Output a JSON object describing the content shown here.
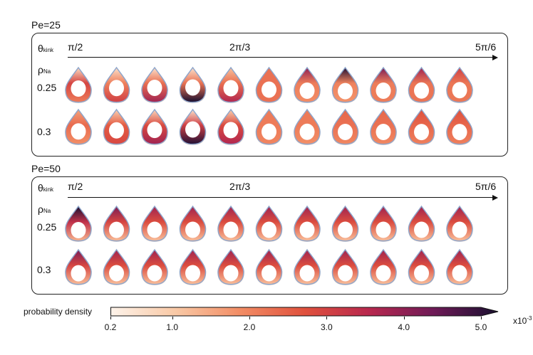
{
  "panels": [
    {
      "pe_label": "Pe=25",
      "theta_symbol": "θ",
      "theta_sub": "kink",
      "theta_labels": [
        "π/2",
        "2π/3",
        "5π/6"
      ],
      "rho_symbol": "ρ",
      "rho_sub": "Na",
      "rows": [
        "0.25",
        "0.3"
      ],
      "rows_density": [
        [
          {
            "side": 0.85,
            "bottom": 0.55,
            "top": 0.05,
            "peak": 0.55
          },
          {
            "side": 0.45,
            "bottom": 0.75,
            "top": 0.0,
            "peak": 0.65
          },
          {
            "side": 0.45,
            "bottom": 0.85,
            "top": 0.0,
            "peak": 0.75
          },
          {
            "side": 0.35,
            "bottom": 1.0,
            "top": 0.0,
            "peak": 0.95
          },
          {
            "side": 0.45,
            "bottom": 0.8,
            "top": 0.15,
            "peak": 0.75
          },
          {
            "side": 0.55,
            "bottom": 0.55,
            "top": 0.55,
            "peak": 0.6
          },
          {
            "side": 0.35,
            "bottom": 0.3,
            "top": 0.8,
            "peak": 0.85
          },
          {
            "side": 0.3,
            "bottom": 0.25,
            "top": 0.95,
            "peak": 0.95
          },
          {
            "side": 0.35,
            "bottom": 0.35,
            "top": 0.85,
            "peak": 0.85
          },
          {
            "side": 0.4,
            "bottom": 0.4,
            "top": 0.8,
            "peak": 0.8
          },
          {
            "side": 0.45,
            "bottom": 0.45,
            "top": 0.7,
            "peak": 0.7
          }
        ],
        [
          {
            "side": 0.7,
            "bottom": 0.5,
            "top": 0.4,
            "peak": 0.5
          },
          {
            "side": 0.6,
            "bottom": 0.7,
            "top": 0.1,
            "peak": 0.65
          },
          {
            "side": 0.6,
            "bottom": 0.85,
            "top": 0.05,
            "peak": 0.75
          },
          {
            "side": 0.55,
            "bottom": 1.0,
            "top": 0.0,
            "peak": 0.9
          },
          {
            "side": 0.6,
            "bottom": 0.8,
            "top": 0.1,
            "peak": 0.75
          },
          {
            "side": 0.55,
            "bottom": 0.5,
            "top": 0.55,
            "peak": 0.55
          },
          {
            "side": 0.55,
            "bottom": 0.45,
            "top": 0.55,
            "peak": 0.55
          },
          {
            "side": 0.55,
            "bottom": 0.45,
            "top": 0.6,
            "peak": 0.6
          },
          {
            "side": 0.55,
            "bottom": 0.45,
            "top": 0.6,
            "peak": 0.6
          },
          {
            "side": 0.55,
            "bottom": 0.45,
            "top": 0.65,
            "peak": 0.65
          },
          {
            "side": 0.55,
            "bottom": 0.45,
            "top": 0.65,
            "peak": 0.65
          }
        ]
      ]
    },
    {
      "pe_label": "Pe=50",
      "theta_symbol": "θ",
      "theta_sub": "kink",
      "theta_labels": [
        "π/2",
        "2π/3",
        "5π/6"
      ],
      "rho_symbol": "ρ",
      "rho_sub": "Na",
      "rows": [
        "0.25",
        "0.3"
      ],
      "rows_density": [
        [
          {
            "side": 0.55,
            "bottom": 0.15,
            "top": 1.0,
            "peak": 1.0
          },
          {
            "side": 0.55,
            "bottom": 0.15,
            "top": 0.85,
            "peak": 0.85
          },
          {
            "side": 0.55,
            "bottom": 0.15,
            "top": 0.8,
            "peak": 0.8
          },
          {
            "side": 0.55,
            "bottom": 0.15,
            "top": 0.8,
            "peak": 0.8
          },
          {
            "side": 0.55,
            "bottom": 0.15,
            "top": 0.8,
            "peak": 0.8
          },
          {
            "side": 0.55,
            "bottom": 0.15,
            "top": 0.8,
            "peak": 0.8
          },
          {
            "side": 0.55,
            "bottom": 0.15,
            "top": 0.8,
            "peak": 0.8
          },
          {
            "side": 0.55,
            "bottom": 0.15,
            "top": 0.8,
            "peak": 0.8
          },
          {
            "side": 0.55,
            "bottom": 0.15,
            "top": 0.8,
            "peak": 0.8
          },
          {
            "side": 0.55,
            "bottom": 0.15,
            "top": 0.8,
            "peak": 0.8
          },
          {
            "side": 0.55,
            "bottom": 0.15,
            "top": 0.8,
            "peak": 0.8
          }
        ],
        [
          {
            "side": 0.55,
            "bottom": 0.15,
            "top": 0.85,
            "peak": 0.85
          },
          {
            "side": 0.55,
            "bottom": 0.15,
            "top": 0.8,
            "peak": 0.8
          },
          {
            "side": 0.55,
            "bottom": 0.15,
            "top": 0.8,
            "peak": 0.8
          },
          {
            "side": 0.55,
            "bottom": 0.15,
            "top": 0.8,
            "peak": 0.8
          },
          {
            "side": 0.55,
            "bottom": 0.15,
            "top": 0.8,
            "peak": 0.8
          },
          {
            "side": 0.55,
            "bottom": 0.15,
            "top": 0.8,
            "peak": 0.8
          },
          {
            "side": 0.55,
            "bottom": 0.15,
            "top": 0.8,
            "peak": 0.8
          },
          {
            "side": 0.55,
            "bottom": 0.15,
            "top": 0.8,
            "peak": 0.8
          },
          {
            "side": 0.55,
            "bottom": 0.15,
            "top": 0.8,
            "peak": 0.8
          },
          {
            "side": 0.55,
            "bottom": 0.15,
            "top": 0.8,
            "peak": 0.8
          },
          {
            "side": 0.55,
            "bottom": 0.15,
            "top": 0.8,
            "peak": 0.8
          }
        ]
      ]
    }
  ],
  "colorbar": {
    "label": "probability density",
    "ticks": [
      "0.2",
      "1.0",
      "2.0",
      "3.0",
      "4.0",
      "5.0"
    ],
    "tick_values": [
      0.2,
      1.0,
      2.0,
      3.0,
      4.0,
      5.0
    ],
    "range": [
      0.2,
      5.0
    ],
    "extend": "max",
    "scale_base": "x10",
    "scale_exp": "-3",
    "colors": [
      "#fdf3ea",
      "#f9c9a6",
      "#f28d65",
      "#e0513d",
      "#b8284e",
      "#6e1a57",
      "#1a1030"
    ]
  },
  "outline_color": "#8aa6cf"
}
